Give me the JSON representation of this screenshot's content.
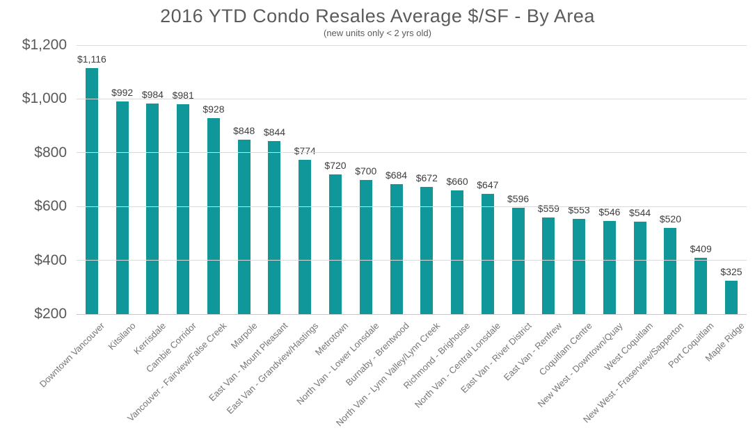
{
  "chart_data": {
    "type": "bar",
    "title": "2016 YTD Condo Resales Average $/SF - By Area",
    "subtitle": "(new units only < 2 yrs old)",
    "categories": [
      "Downtown Vancouver",
      "Kitsilano",
      "Kerrisdale",
      "Cambie Corridor",
      "Vancouver - Fairview/False Creek",
      "Marpole",
      "East Van - Mount Pleasant",
      "East Van - Grandview/Hastings",
      "Metrotown",
      "North Van - Lower Lonsdale",
      "Burnaby - Brentwood",
      "North Van - Lynn Valley/Lynn Creek",
      "Richmond - Brighouse",
      "North Van - Central Lonsdale",
      "East Van - River District",
      "East Van - Renfrew",
      "Coquitlam Centre",
      "New West - Downtown/Quay",
      "West Coquitlam",
      "New West - Fraserview/Sapperton",
      "Port Coquitlam",
      "Maple Ridge"
    ],
    "values": [
      1116,
      992,
      984,
      981,
      928,
      848,
      844,
      774,
      720,
      700,
      684,
      672,
      660,
      647,
      596,
      559,
      553,
      546,
      544,
      520,
      409,
      325
    ],
    "value_labels": [
      "$1,116",
      "$992",
      "$984",
      "$981",
      "$928",
      "$848",
      "$844",
      "$774",
      "$720",
      "$700",
      "$684",
      "$672",
      "$660",
      "$647",
      "$596",
      "$559",
      "$553",
      "$546",
      "$544",
      "$520",
      "$409",
      "$325"
    ],
    "xlabel": "",
    "ylabel": "",
    "ylim": [
      200,
      1200
    ],
    "yticks": [
      200,
      400,
      600,
      800,
      1000,
      1200
    ],
    "ytick_labels": [
      "$200",
      "$400",
      "$600",
      "$800",
      "$1,000",
      "$1,200"
    ],
    "grid": "horizontal",
    "legend": "none",
    "bar_color": "#109799",
    "gridline_color": "#d9d9d9",
    "title_color": "#5b5b5b",
    "value_label_color": "#3d3d3d",
    "axis_label_color": "#595959",
    "category_label_color": "#757575"
  }
}
